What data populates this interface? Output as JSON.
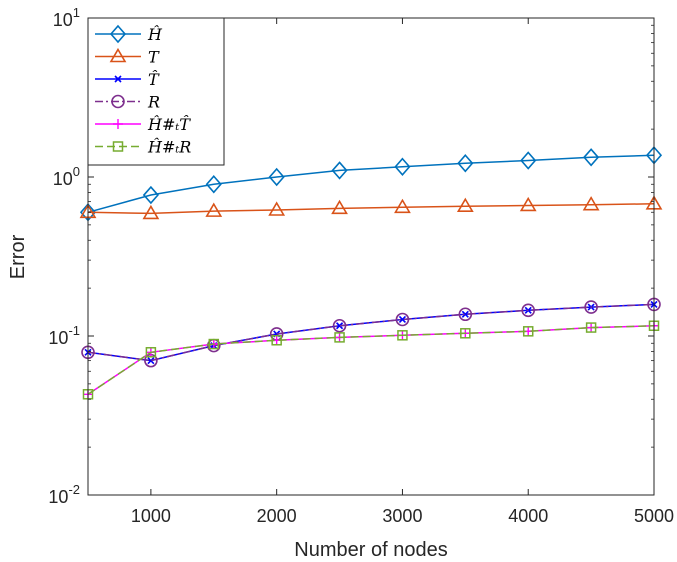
{
  "chart_data": {
    "type": "line",
    "xlabel": "Number of nodes",
    "ylabel": "Error",
    "xlim": [
      500,
      5000
    ],
    "ylim": [
      0.01,
      10
    ],
    "yscale": "log",
    "grid": false,
    "legend_position": "top-left",
    "x_ticks": [
      {
        "value": 1000,
        "label": "1000"
      },
      {
        "value": 2000,
        "label": "2000"
      },
      {
        "value": 3000,
        "label": "3000"
      },
      {
        "value": 4000,
        "label": "4000"
      },
      {
        "value": 5000,
        "label": "5000"
      }
    ],
    "y_ticks": [
      {
        "value": 0.01,
        "base": "10",
        "exp": "-2"
      },
      {
        "value": 0.1,
        "base": "10",
        "exp": "-1"
      },
      {
        "value": 1,
        "base": "10",
        "exp": "0"
      },
      {
        "value": 10,
        "base": "10",
        "exp": "1"
      }
    ],
    "x": [
      500,
      1000,
      1500,
      2000,
      2500,
      3000,
      3500,
      4000,
      4500,
      5000
    ],
    "series": [
      {
        "name": "Ĥ",
        "color": "#0072BD",
        "marker": "diamond",
        "dash": "solid",
        "values": [
          0.6,
          0.77,
          0.9,
          1.0,
          1.1,
          1.16,
          1.22,
          1.27,
          1.33,
          1.37
        ]
      },
      {
        "name": "T",
        "color": "#D95319",
        "marker": "triangle",
        "dash": "solid",
        "values": [
          0.6,
          0.59,
          0.61,
          0.62,
          0.635,
          0.645,
          0.655,
          0.662,
          0.67,
          0.678
        ]
      },
      {
        "name": "T̂",
        "color": "#0000FF",
        "marker": "x",
        "dash": "solid",
        "values": [
          0.079,
          0.07,
          0.087,
          0.103,
          0.116,
          0.127,
          0.137,
          0.145,
          0.152,
          0.158
        ]
      },
      {
        "name": "R",
        "color": "#7E2F8E",
        "marker": "circle",
        "dash": "dashdot",
        "values": [
          0.079,
          0.07,
          0.087,
          0.103,
          0.116,
          0.127,
          0.137,
          0.145,
          0.152,
          0.158
        ]
      },
      {
        "name": "Ĥ#ₜT̂",
        "color": "#FF00FF",
        "marker": "plus",
        "dash": "solid",
        "values": [
          0.043,
          0.079,
          0.089,
          0.094,
          0.098,
          0.101,
          0.104,
          0.107,
          0.113,
          0.116
        ]
      },
      {
        "name": "Ĥ#ₜR",
        "color": "#77AC30",
        "marker": "square",
        "dash": "dashed",
        "values": [
          0.043,
          0.079,
          0.089,
          0.094,
          0.098,
          0.101,
          0.104,
          0.107,
          0.113,
          0.116
        ]
      }
    ]
  }
}
